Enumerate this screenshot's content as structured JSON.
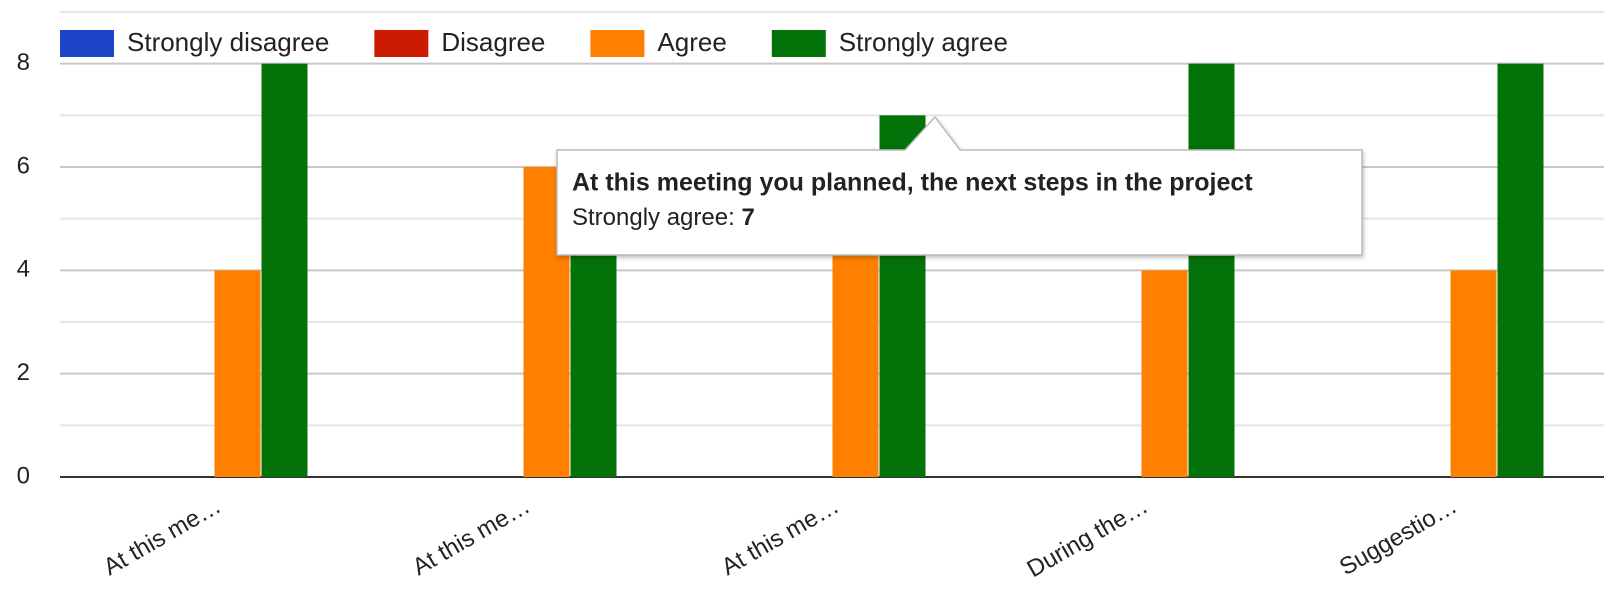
{
  "chart_data": {
    "type": "bar",
    "categories": [
      "At this me…",
      "At this me…",
      "At this me…",
      "During the…",
      "Suggestio…"
    ],
    "series": [
      {
        "name": "Strongly disagree",
        "color": "#1c44c7",
        "values": [
          0,
          0,
          0,
          0,
          0
        ]
      },
      {
        "name": "Disagree",
        "color": "#cc1b00",
        "values": [
          0,
          0,
          0,
          0,
          0
        ]
      },
      {
        "name": "Agree",
        "color": "#ff7f00",
        "values": [
          4,
          6,
          5,
          4,
          4
        ]
      },
      {
        "name": "Strongly agree",
        "color": "#037208",
        "values": [
          8,
          5,
          7,
          8,
          8
        ]
      }
    ],
    "ylim": [
      0,
      9
    ],
    "yticks": [
      0,
      2,
      4,
      6,
      8
    ],
    "minor_yticks": [
      1,
      3,
      5,
      7,
      9
    ],
    "grid": true,
    "legend": "top",
    "tooltip": {
      "title": "At this meeting you planned, the next steps in the project",
      "label": "Strongly agree: ",
      "category": 2,
      "series": 3
    }
  }
}
